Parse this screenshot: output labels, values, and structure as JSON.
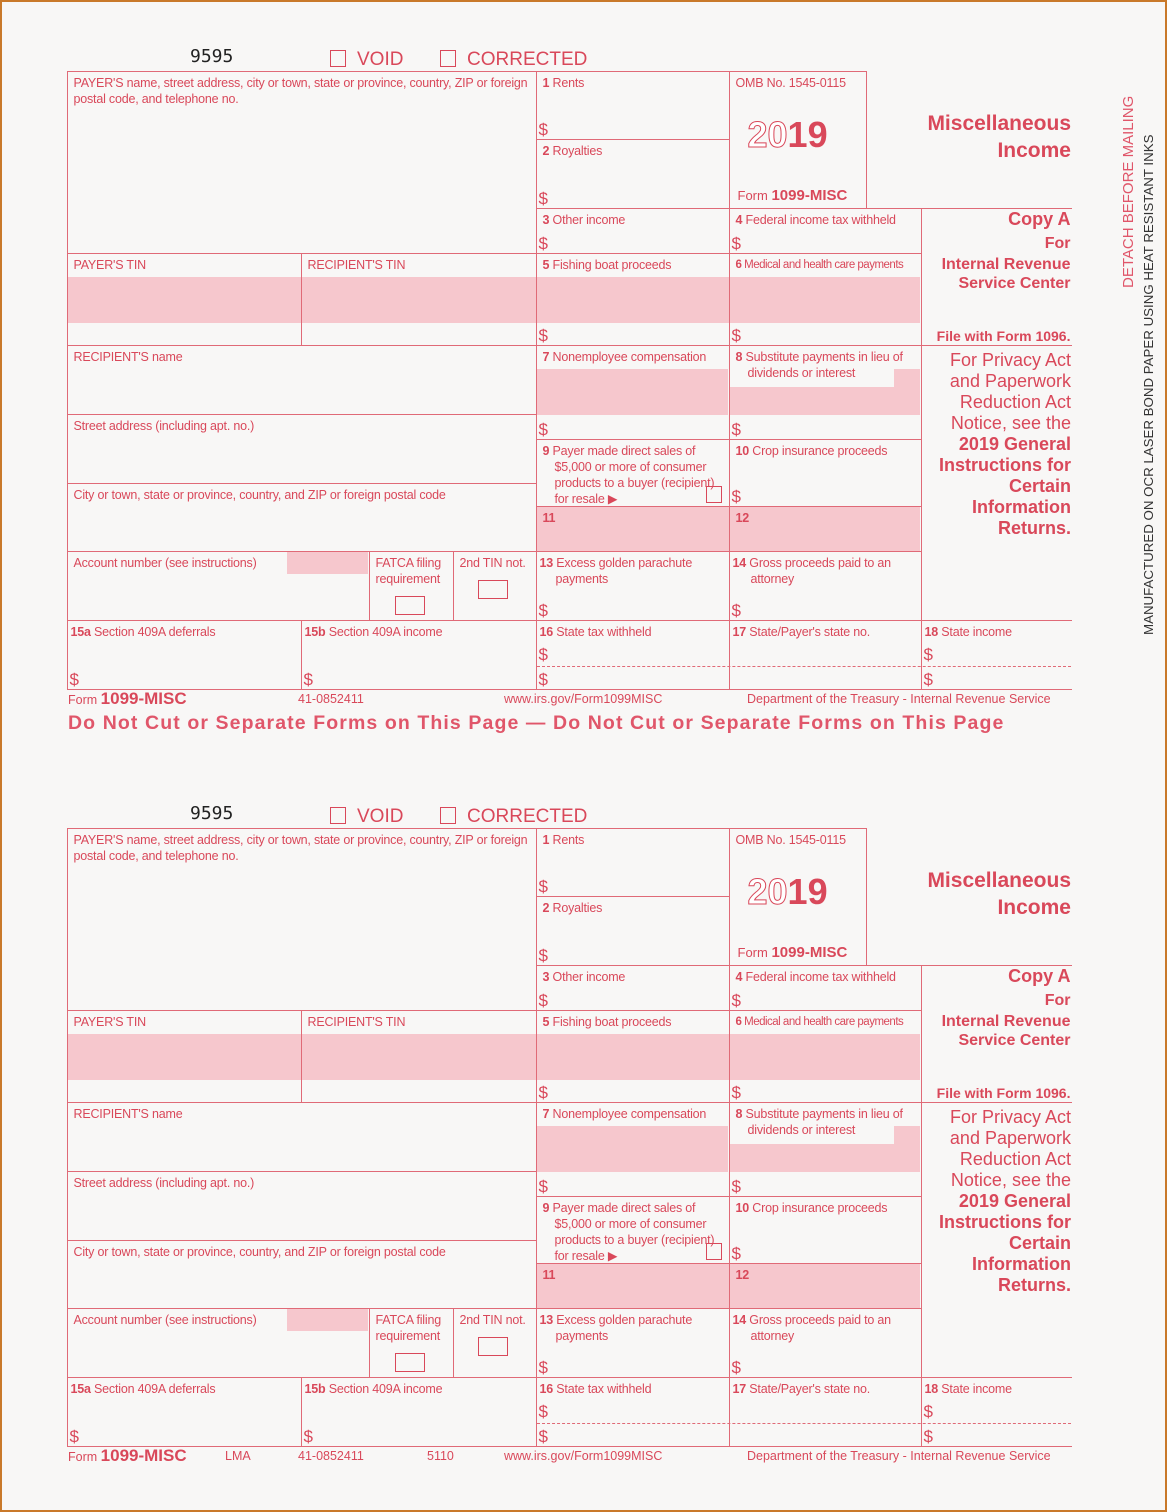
{
  "form": {
    "form_id_number": "9595",
    "void_label": "VOID",
    "corrected_label": "CORRECTED",
    "payer_info": "PAYER'S name, street address, city or town, state or province, country, ZIP or foreign postal code, and telephone no.",
    "box1_num": "1",
    "box1": "Rents",
    "box2_num": "2",
    "box2": "Royalties",
    "omb": "OMB No. 1545-0115",
    "year_outline": "20",
    "year_bold": "19",
    "form_prefix": "Form",
    "form_name": "1099-MISC",
    "title": "Miscellaneous Income",
    "box3_num": "3",
    "box3": "Other income",
    "box4_num": "4",
    "box4": "Federal income tax withheld",
    "copy_a": "Copy A",
    "copy_for": "For",
    "copy_dest": "Internal Revenue Service Center",
    "file_with": "File with Form 1096.",
    "payer_tin": "PAYER'S TIN",
    "recipient_tin": "RECIPIENT'S TIN",
    "box5_num": "5",
    "box5": "Fishing boat proceeds",
    "box6_num": "6",
    "box6": "Medical and health care payments",
    "recipient_name": "RECIPIENT'S name",
    "box7_num": "7",
    "box7": "Nonemployee compensation",
    "box8_num": "8",
    "box8": "Substitute payments in lieu of dividends or interest",
    "privacy_regular": [
      "For Privacy Act",
      "and Paperwork",
      "Reduction Act",
      "Notice, see the"
    ],
    "privacy_bold": [
      "2019 General",
      "Instructions for",
      "Certain",
      "Information",
      "Returns."
    ],
    "street": "Street address (including apt. no.)",
    "box9_num": "9",
    "box9": "Payer made direct sales of $5,000 or more of consumer products to a buyer (recipient) for resale ▶",
    "box10_num": "10",
    "box10": "Crop insurance proceeds",
    "city": "City or town, state or province, country, and ZIP or foreign postal code",
    "box11_num": "11",
    "box12_num": "12",
    "account": "Account number (see instructions)",
    "fatca": "FATCA filing requirement",
    "tin2": "2nd TIN not.",
    "box13_num": "13",
    "box13": "Excess golden parachute payments",
    "box14_num": "14",
    "box14": "Gross proceeds paid to an attorney",
    "box15a_num": "15a",
    "box15a": "Section 409A deferrals",
    "box15b_num": "15b",
    "box15b": "Section 409A income",
    "box16_num": "16",
    "box16": "State tax withheld",
    "box17_num": "17",
    "box17": "State/Payer's state no.",
    "box18_num": "18",
    "box18": "State income",
    "dollar": "$",
    "ein": "41-0852411",
    "url": "www.irs.gov/Form1099MISC",
    "dept": "Department of the Treasury - Internal Revenue Service"
  },
  "copies": [
    {
      "lma": "",
      "code": "",
      "do_not_cut": "Do Not Cut or Separate Forms on This Page — Do Not Cut or Separate Forms on This Page"
    },
    {
      "lma": "LMA",
      "code": "5110",
      "do_not_cut": ""
    }
  ],
  "margin": {
    "detach": "DETACH BEFORE MAILING",
    "manufactured": "MANUFACTURED ON OCR LASER BOND PAPER USING HEAT RESISTANT INKS"
  },
  "colors": {
    "form_red": "#d9485a",
    "shading_pink": "#f6c7cd"
  }
}
